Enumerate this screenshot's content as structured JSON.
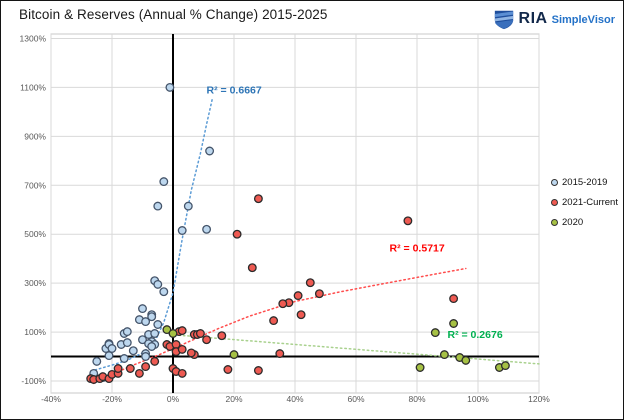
{
  "header": {
    "title": "Bitcoin & Reserves (Annual % Change) 2015-2025",
    "logo": {
      "brand": "RIA",
      "product": "SimpleVisor"
    }
  },
  "chart_data": {
    "type": "scatter",
    "title": "Bitcoin & Reserves (Annual % Change) 2015-2025",
    "xlabel": "",
    "ylabel": "",
    "grid": true,
    "legend_position": "right",
    "x_axis": {
      "min": -40,
      "max": 120,
      "unit": "%",
      "ticks": [
        -40,
        -20,
        0,
        20,
        40,
        60,
        80,
        100,
        120
      ],
      "tick_labels": [
        "-40%",
        "-20%",
        "0%",
        "20%",
        "40%",
        "60%",
        "80%",
        "100%",
        "120%"
      ]
    },
    "y_axis": {
      "min": -150,
      "max": 1318,
      "unit": "%",
      "ticks": [
        1300,
        1100,
        900,
        700,
        500,
        300,
        100,
        -100
      ],
      "tick_labels": [
        "1300%",
        "1100%",
        "900%",
        "700%",
        "500%",
        "300%",
        "100%",
        "-100%"
      ]
    },
    "zero_lines": {
      "x": 0,
      "y": 0,
      "color": "#000000"
    },
    "colors": {
      "grid": "#d9d9d9",
      "plot_border": "#c9c9c9",
      "tick_text": "#595959"
    },
    "series": [
      {
        "name": "2015-2019",
        "fill": "#bdd7ee",
        "stroke": "#44546a",
        "trend_color": "#5b9bd5",
        "r2_label": "R² = 0.6667",
        "r2_value": 0.6667,
        "r2_color": "#2e75b6",
        "r2_pos": [
          11,
          1075
        ],
        "trend": [
          [
            -27,
            -60
          ],
          [
            -20,
            -35
          ],
          [
            -15,
            -15
          ],
          [
            -10,
            15
          ],
          [
            -6,
            60
          ],
          [
            -3,
            140
          ],
          [
            0,
            260
          ],
          [
            3,
            480
          ],
          [
            6,
            680
          ],
          [
            9,
            830
          ],
          [
            11,
            950
          ],
          [
            13,
            1060
          ]
        ],
        "points": [
          [
            -1,
            1100
          ],
          [
            12,
            840
          ],
          [
            -3,
            715
          ],
          [
            -5,
            615
          ],
          [
            5,
            615
          ],
          [
            3,
            515
          ],
          [
            11,
            520
          ],
          [
            -6,
            310
          ],
          [
            -5,
            295
          ],
          [
            -3,
            265
          ],
          [
            -10,
            196
          ],
          [
            -7,
            171
          ],
          [
            -11,
            151
          ],
          [
            -9,
            143
          ],
          [
            -7,
            163
          ],
          [
            -5,
            131
          ],
          [
            -8,
            90
          ],
          [
            -6,
            94
          ],
          [
            -10,
            69
          ],
          [
            -7,
            61
          ],
          [
            -6,
            49
          ],
          [
            -16,
            94
          ],
          [
            -15,
            102
          ],
          [
            -21,
            53
          ],
          [
            -22,
            33
          ],
          [
            -25,
            -20
          ],
          [
            -21,
            49
          ],
          [
            -20,
            33
          ],
          [
            -17,
            49
          ],
          [
            -15,
            57
          ],
          [
            -21,
            4
          ],
          [
            -16,
            -8
          ],
          [
            -13,
            24
          ],
          [
            -26,
            -69
          ],
          [
            -23,
            -86
          ],
          [
            -8,
            53
          ],
          [
            -7,
            41
          ],
          [
            -9,
            12
          ],
          [
            -9,
            0
          ]
        ]
      },
      {
        "name": "2021-Current",
        "fill": "#ee5a52",
        "stroke": "#2b2b2b",
        "trend_color": "#ff4d4d",
        "r2_label": "R² = 0.5717",
        "r2_value": 0.5717,
        "r2_color": "#ff0000",
        "r2_pos": [
          71,
          430
        ],
        "trend": [
          [
            -26,
            -110
          ],
          [
            -15,
            -45
          ],
          [
            -5,
            5
          ],
          [
            5,
            60
          ],
          [
            15,
            115
          ],
          [
            25,
            165
          ],
          [
            40,
            225
          ],
          [
            55,
            265
          ],
          [
            70,
            300
          ],
          [
            85,
            335
          ],
          [
            96,
            360
          ]
        ],
        "points": [
          [
            28,
            645
          ],
          [
            77,
            555
          ],
          [
            21,
            500
          ],
          [
            26,
            363
          ],
          [
            45,
            302
          ],
          [
            48,
            257
          ],
          [
            41,
            249
          ],
          [
            38,
            220
          ],
          [
            36,
            216
          ],
          [
            42,
            171
          ],
          [
            33,
            147
          ],
          [
            92,
            237
          ],
          [
            16,
            85
          ],
          [
            35,
            12
          ],
          [
            7,
            8
          ],
          [
            18,
            -53
          ],
          [
            28,
            -57
          ],
          [
            2,
            102
          ],
          [
            3,
            106
          ],
          [
            7,
            90
          ],
          [
            8,
            90
          ],
          [
            9,
            94
          ],
          [
            11,
            69
          ],
          [
            -2,
            49
          ],
          [
            -1,
            41
          ],
          [
            1,
            49
          ],
          [
            1,
            20
          ],
          [
            3,
            29
          ],
          [
            6,
            15
          ],
          [
            0,
            -49
          ],
          [
            1,
            -61
          ],
          [
            3,
            -69
          ],
          [
            -6,
            -20
          ],
          [
            -27,
            -90
          ],
          [
            -26,
            -94
          ],
          [
            -24,
            -90
          ],
          [
            -23,
            -82
          ],
          [
            -21,
            -90
          ],
          [
            -20,
            -73
          ],
          [
            -18,
            -69
          ],
          [
            -18,
            -49
          ],
          [
            -14,
            -49
          ],
          [
            -11,
            -69
          ],
          [
            -9,
            -41
          ]
        ]
      },
      {
        "name": "2020",
        "fill": "#a6c144",
        "stroke": "#2b2b2b",
        "trend_color": "#a9d18e",
        "r2_label": "R² = 0.2676",
        "r2_value": 0.2676,
        "r2_color": "#00b050",
        "r2_pos": [
          90,
          75
        ],
        "trend": [
          [
            -1,
            90
          ],
          [
            120,
            -30
          ]
        ],
        "points": [
          [
            -2,
            110
          ],
          [
            0,
            94
          ],
          [
            20,
            8
          ],
          [
            81,
            -45
          ],
          [
            86,
            98
          ],
          [
            89,
            8
          ],
          [
            94,
            -4
          ],
          [
            96,
            -16
          ],
          [
            92,
            135
          ],
          [
            107,
            -45
          ],
          [
            109,
            -37
          ]
        ]
      }
    ]
  }
}
